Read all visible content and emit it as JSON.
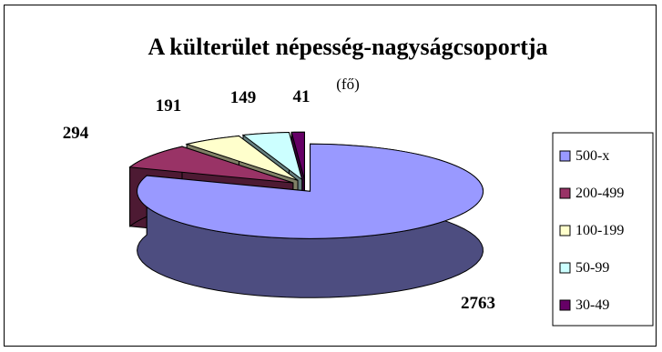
{
  "chart_data": {
    "type": "pie",
    "style": "3d-exploded",
    "title": "A külterület népesség-nagyságcsoportja",
    "subtitle": "(fő)",
    "categories": [
      "500-x",
      "200-499",
      "100-199",
      "50-99",
      "30-49"
    ],
    "values": [
      2763,
      294,
      191,
      149,
      41
    ],
    "data_labels": [
      "2763",
      "294",
      "191",
      "149",
      "41"
    ],
    "colors": [
      "#9999FF",
      "#993366",
      "#FFFFCC",
      "#CCFFFF",
      "#660066"
    ],
    "legend_position": "right"
  }
}
